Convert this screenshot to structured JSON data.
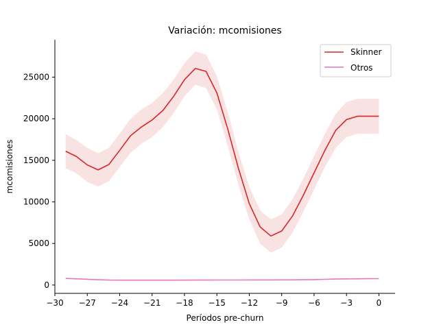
{
  "chart_data": {
    "type": "line",
    "title": "Variación: mcomisiones",
    "xlabel": "Períodos pre-churn",
    "ylabel": "mcomisiones",
    "xlim": [
      -30,
      1.5
    ],
    "ylim": [
      -1000,
      29500
    ],
    "xticks": [
      -30,
      -27,
      -24,
      -21,
      -18,
      -15,
      -12,
      -9,
      -6,
      -3,
      0
    ],
    "xtick_labels": [
      "−30",
      "−27",
      "−24",
      "−21",
      "−18",
      "−15",
      "−12",
      "−9",
      "−6",
      "−3",
      "0"
    ],
    "yticks": [
      0,
      5000,
      10000,
      15000,
      20000,
      25000
    ],
    "ytick_labels": [
      "0",
      "5000",
      "10000",
      "15000",
      "20000",
      "25000"
    ],
    "grid": false,
    "legend_position": "top-right",
    "x": [
      -29,
      -28,
      -27,
      -26,
      -25,
      -24,
      -23,
      -22,
      -21,
      -20,
      -19,
      -18,
      -17,
      -16,
      -15,
      -14,
      -13,
      -12,
      -11,
      -10,
      -9,
      -8,
      -7,
      -6,
      -5,
      -4,
      -3,
      -2,
      -1,
      0
    ],
    "series": [
      {
        "name": "Skinner",
        "color": "#d62728",
        "band_color": "#f4c6c6",
        "values": [
          16100,
          15450,
          14450,
          13850,
          14500,
          16200,
          17950,
          19000,
          19850,
          21000,
          22700,
          24700,
          26050,
          25700,
          23100,
          18800,
          14000,
          9800,
          7000,
          5900,
          6500,
          8300,
          10800,
          13500,
          16200,
          18600,
          19900,
          20300,
          20300,
          20300
        ],
        "lower": [
          14050,
          13450,
          12400,
          11850,
          12500,
          14200,
          15900,
          17000,
          17800,
          19000,
          20700,
          22700,
          24100,
          23700,
          21100,
          16800,
          12000,
          7900,
          5000,
          3900,
          4500,
          6300,
          8800,
          11500,
          14200,
          16500,
          17800,
          18200,
          18200,
          18200
        ],
        "upper": [
          18150,
          17450,
          16500,
          15850,
          16500,
          18200,
          20000,
          21100,
          21900,
          23100,
          24700,
          26700,
          28100,
          27700,
          25100,
          20800,
          16000,
          11800,
          9000,
          7900,
          8500,
          10300,
          12800,
          15500,
          18200,
          20600,
          22000,
          22400,
          22400,
          22400
        ]
      },
      {
        "name": "Otros",
        "color": "#e377c2",
        "values": [
          800,
          750,
          700,
          640,
          600,
          590,
          590,
          590,
          590,
          590,
          590,
          595,
          600,
          600,
          605,
          610,
          610,
          615,
          615,
          615,
          620,
          625,
          640,
          660,
          690,
          720,
          740,
          750,
          760,
          770
        ]
      }
    ]
  }
}
